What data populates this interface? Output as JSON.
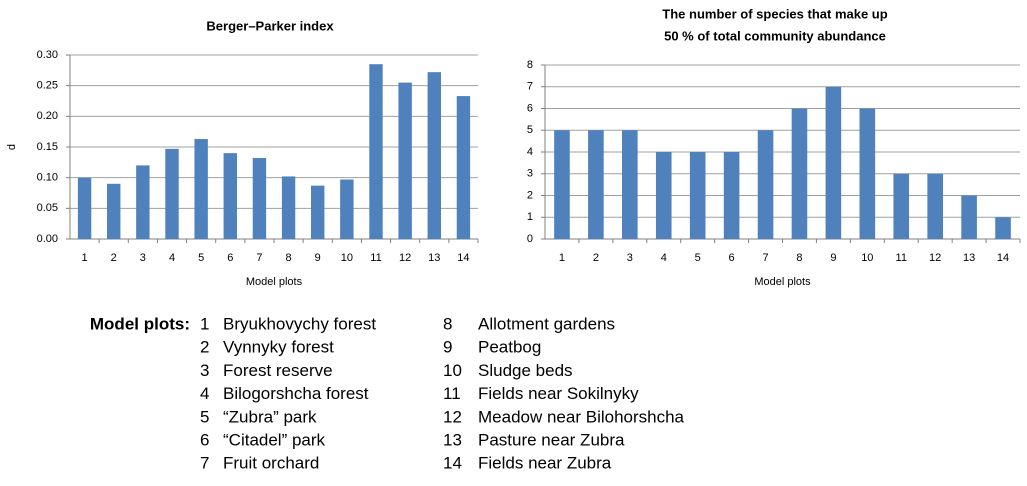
{
  "chart_data": [
    {
      "type": "bar",
      "title": [
        "Berger–Parker index"
      ],
      "xlabel": "Model plots",
      "ylabel": "d",
      "categories": [
        "1",
        "2",
        "3",
        "4",
        "5",
        "6",
        "7",
        "8",
        "9",
        "10",
        "11",
        "12",
        "13",
        "14"
      ],
      "values": [
        0.1,
        0.09,
        0.12,
        0.147,
        0.163,
        0.14,
        0.132,
        0.102,
        0.087,
        0.097,
        0.285,
        0.255,
        0.272,
        0.233
      ],
      "color": "#4f81bd",
      "ylim": [
        0,
        0.3
      ],
      "yticks": [
        {
          "value": 0,
          "label": "0.00"
        },
        0.05,
        {
          "value": 0.1,
          "label": "0.10"
        },
        0.15,
        {
          "value": 0.2,
          "label": "0.20"
        },
        0.25,
        {
          "value": 0.3,
          "label": "0.30"
        }
      ],
      "grid": true
    },
    {
      "type": "bar",
      "title": [
        "The number of species that make up",
        "50 % of total community abundance"
      ],
      "xlabel": "Model plots",
      "categories": [
        "1",
        "2",
        "3",
        "4",
        "5",
        "6",
        "7",
        "8",
        "9",
        "10",
        "11",
        "12",
        "13",
        "14"
      ],
      "values": [
        5,
        5,
        5,
        4,
        4,
        4,
        5,
        6,
        7,
        6,
        3,
        3,
        2,
        1
      ],
      "color": "#4f81bd",
      "ylim": [
        0,
        8
      ],
      "yticks": [
        0,
        1,
        2,
        3,
        4,
        5,
        6,
        7,
        8
      ],
      "grid": true
    }
  ],
  "legend": {
    "title": "Model plots:",
    "items": [
      {
        "number": "1",
        "name": "Bryukhovychy forest"
      },
      {
        "number": "2",
        "name": "Vynnyky forest"
      },
      {
        "number": "3",
        "name": "Forest reserve"
      },
      {
        "number": "4",
        "name": "Bilogorshcha forest"
      },
      {
        "number": "5",
        "name": "“Zubra” park"
      },
      {
        "number": "6",
        "name": "“Citadel” park"
      },
      {
        "number": "7",
        "name": "Fruit orchard"
      },
      {
        "number": "8",
        "name": "Allotment gardens"
      },
      {
        "number": "9",
        "name": "Peatbog"
      },
      {
        "number": "10",
        "name": "Sludge beds"
      },
      {
        "number": "11",
        "name": "Fields near Sokilnyky"
      },
      {
        "number": "12",
        "name": "Meadow near Bilohorshcha"
      },
      {
        "number": "13",
        "name": "Pasture near Zubra"
      },
      {
        "number": "14",
        "name": "Fields near Zubra"
      }
    ]
  }
}
